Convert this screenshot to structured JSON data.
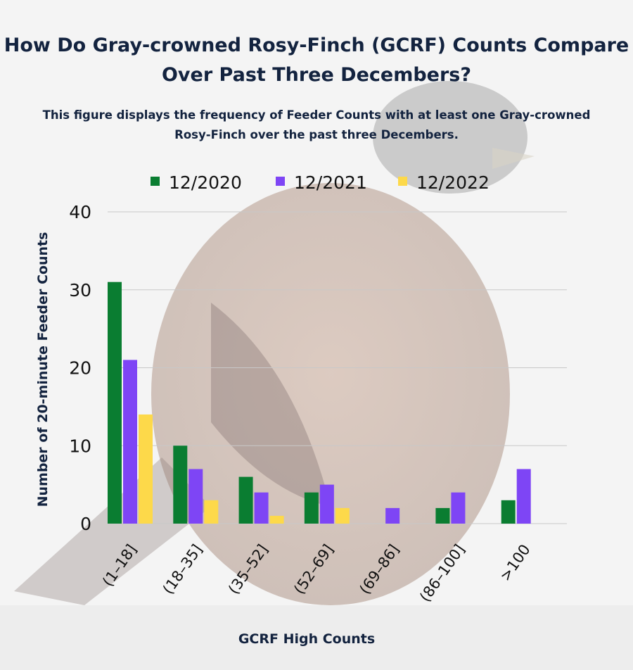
{
  "colors": {
    "background": "#f4f4f4",
    "title": "#13233f",
    "grid": "#c8c8c8",
    "bird_body": "#b79a8c",
    "bird_head": "#8f8f8f"
  },
  "chart_data": {
    "type": "bar",
    "title": "How Do Gray-crowned Rosy-Finch (GCRF) Counts Compare Over Past Three Decembers?",
    "subtitle": "This figure displays the frequency of Feeder Counts with at least one Gray-crowned Rosy-Finch over the past three Decembers.",
    "xlabel": "GCRF High Counts",
    "ylabel": "Number of 20-minute Feeder Counts",
    "categories": [
      "(1–18]",
      "(18–35]",
      "(35–52]",
      "(52–69]",
      "(69–86]",
      "(86–100]",
      ">100"
    ],
    "series": [
      {
        "name": "12/2020",
        "color": "#0a7d31",
        "values": [
          31,
          10,
          6,
          4,
          0,
          2,
          3
        ]
      },
      {
        "name": "12/2021",
        "color": "#7e45f5",
        "values": [
          21,
          7,
          4,
          5,
          2,
          4,
          7
        ]
      },
      {
        "name": "12/2022",
        "color": "#fdd94a",
        "values": [
          14,
          3,
          1,
          2,
          0,
          0,
          0
        ]
      }
    ],
    "ylim": [
      0,
      40
    ],
    "yticks": [
      0,
      10,
      20,
      30,
      40
    ],
    "grid": true,
    "legend_position": "top"
  }
}
